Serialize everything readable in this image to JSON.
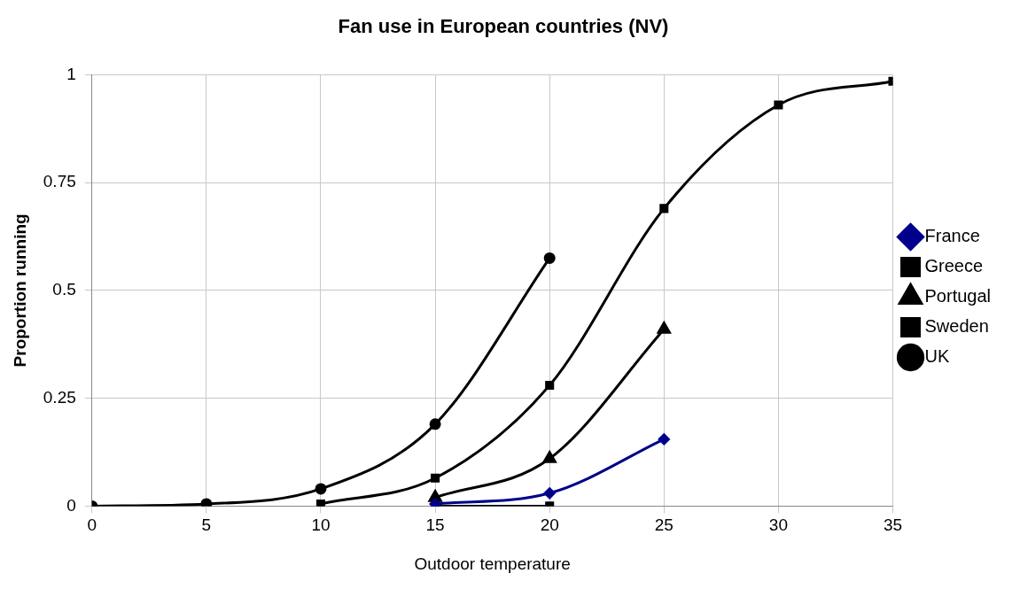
{
  "chart_data": {
    "type": "line",
    "title": "Fan use in European countries (NV)",
    "xlabel": "Outdoor temperature",
    "ylabel": "Proportion running",
    "xlim": [
      0,
      35
    ],
    "xticks": [
      0,
      5,
      10,
      15,
      20,
      25,
      30,
      35
    ],
    "ylim": [
      0,
      1
    ],
    "yticks": [
      0,
      0.25,
      0.5,
      0.75,
      1
    ],
    "grid": true,
    "legend": "right",
    "series": [
      {
        "name": "France",
        "color": "#00008b",
        "marker": "diamond",
        "x": [
          15,
          20,
          25
        ],
        "values": [
          0.005,
          0.03,
          0.155
        ]
      },
      {
        "name": "Greece",
        "color": "#000000",
        "marker": "square",
        "x": [
          10,
          15,
          20,
          25,
          30,
          35
        ],
        "values": [
          0.005,
          0.065,
          0.28,
          0.69,
          0.93,
          0.985
        ]
      },
      {
        "name": "Portugal",
        "color": "#000000",
        "marker": "triangle",
        "x": [
          15,
          20,
          25
        ],
        "values": [
          0.02,
          0.11,
          0.41
        ]
      },
      {
        "name": "Sweden",
        "color": "#000000",
        "marker": "square",
        "x": [
          15,
          20
        ],
        "values": [
          0,
          0
        ]
      },
      {
        "name": "UK",
        "color": "#000000",
        "marker": "circle",
        "x": [
          0,
          5,
          10,
          15,
          20
        ],
        "values": [
          0,
          0.005,
          0.04,
          0.19,
          0.575
        ]
      }
    ]
  }
}
